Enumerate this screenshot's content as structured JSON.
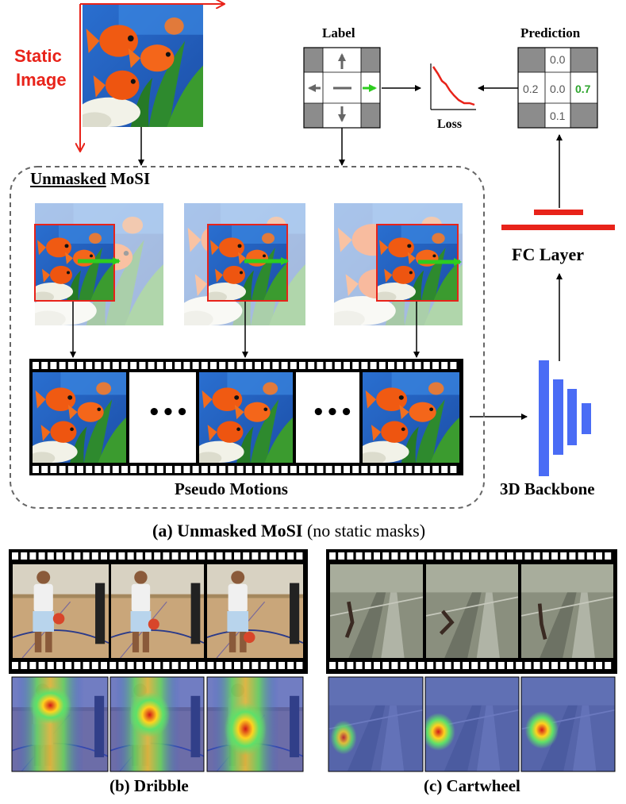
{
  "colors": {
    "red": "#e8231a",
    "green": "#2ecc1f",
    "blue": "#4a6cf5",
    "gray_cell": "#8c8c8c",
    "dashed": "#666666",
    "prediction_highlight": "#2ea52e"
  },
  "icons": {
    "arrow_up": "up-arrow-icon",
    "arrow_down": "down-arrow-icon",
    "arrow_left": "left-arrow-icon",
    "arrow_right": "right-arrow-icon",
    "dots": "ellipsis-icon"
  },
  "static_image": {
    "label_line1": "Static",
    "label_line2": "Image"
  },
  "label": {
    "title": "Label"
  },
  "loss": {
    "title": "Loss"
  },
  "prediction": {
    "title": "Prediction",
    "top": "0.0",
    "left": "0.2",
    "center": "0.0",
    "right": "0.7",
    "bottom": "0.1"
  },
  "mosi_box": {
    "title_underlined": "Unmasked",
    "title_rest": " MoSI",
    "dots": "•••",
    "pseudo_motions": "Pseudo Motions"
  },
  "fc_layer": {
    "label": "FC Layer"
  },
  "backbone": {
    "label": "3D Backbone"
  },
  "caption_a": {
    "bold": "(a) Unmasked MoSI",
    "normal": " (no static masks)"
  },
  "caption_b": "(b) Dribble",
  "caption_c": "(c) Cartwheel"
}
